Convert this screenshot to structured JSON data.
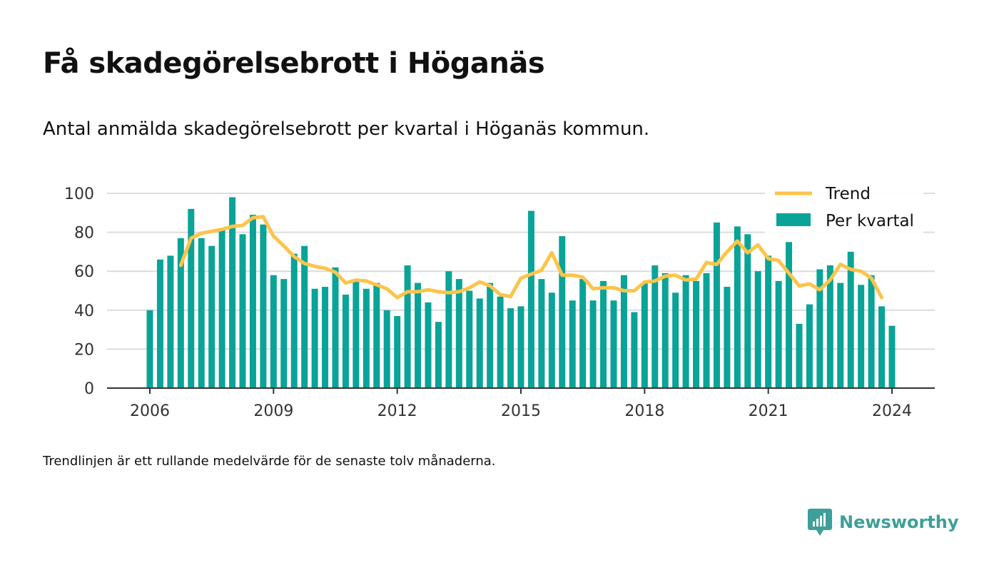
{
  "title": "Få skadegörelsebrott i Höganäs",
  "subtitle": "Antal anmälda skadegörelsebrott per kvartal i Höganäs kommun.",
  "footnote": "Trendlinjen är ett rullande medelvärde för de senaste tolv månaderna.",
  "brand": {
    "name": "Newsworthy",
    "color": "#3d9f98"
  },
  "colors": {
    "bar": "#0aa398",
    "trend": "#fcc44a",
    "grid": "#dcdcdc",
    "axis": "#333333"
  },
  "chart_data": {
    "type": "bar",
    "x_ticks": [
      "2006",
      "2009",
      "2012",
      "2015",
      "2018",
      "2021",
      "2024"
    ],
    "ylim": [
      0,
      100
    ],
    "y_ticks": [
      0,
      20,
      40,
      60,
      80,
      100
    ],
    "grid": true,
    "legend_position": "top-right",
    "series": [
      {
        "name": "Per kvartal",
        "type": "bar",
        "start_year": 2006,
        "values": [
          40,
          66,
          68,
          77,
          92,
          77,
          73,
          81,
          98,
          79,
          89,
          84,
          58,
          56,
          69,
          73,
          51,
          52,
          62,
          48,
          55,
          51,
          54,
          40,
          37,
          63,
          54,
          44,
          34,
          60,
          56,
          50,
          46,
          54,
          47,
          41,
          42,
          91,
          56,
          49,
          78,
          45,
          56,
          45,
          55,
          45,
          58,
          39,
          54,
          63,
          59,
          49,
          58,
          55,
          59,
          85,
          52,
          83,
          79,
          60,
          68,
          55,
          75,
          33,
          43,
          61,
          63,
          54,
          70,
          53,
          58,
          42,
          32
        ]
      },
      {
        "name": "Trend",
        "type": "line",
        "start_year": 2006,
        "values": [
          null,
          null,
          null,
          63,
          77,
          79.5,
          80.5,
          81.5,
          83,
          83.5,
          87.5,
          88,
          78,
          73,
          67.5,
          64,
          62.5,
          61.5,
          59.5,
          54,
          55.5,
          55,
          53,
          51,
          46.5,
          49.5,
          49.5,
          50.5,
          49.5,
          49,
          49.5,
          51.5,
          54.5,
          52.5,
          48,
          47,
          56.5,
          58.5,
          60.5,
          69.5,
          58,
          58,
          57,
          51,
          51.5,
          51.5,
          50,
          50,
          54.5,
          55,
          57.5,
          58,
          55.5,
          56,
          64.5,
          63.5,
          70,
          75.5,
          69.5,
          73.5,
          66.5,
          65.5,
          59,
          52.5,
          53.5,
          50.5,
          55.5,
          63.5,
          61,
          60,
          56.5,
          46.5,
          null
        ]
      }
    ]
  }
}
